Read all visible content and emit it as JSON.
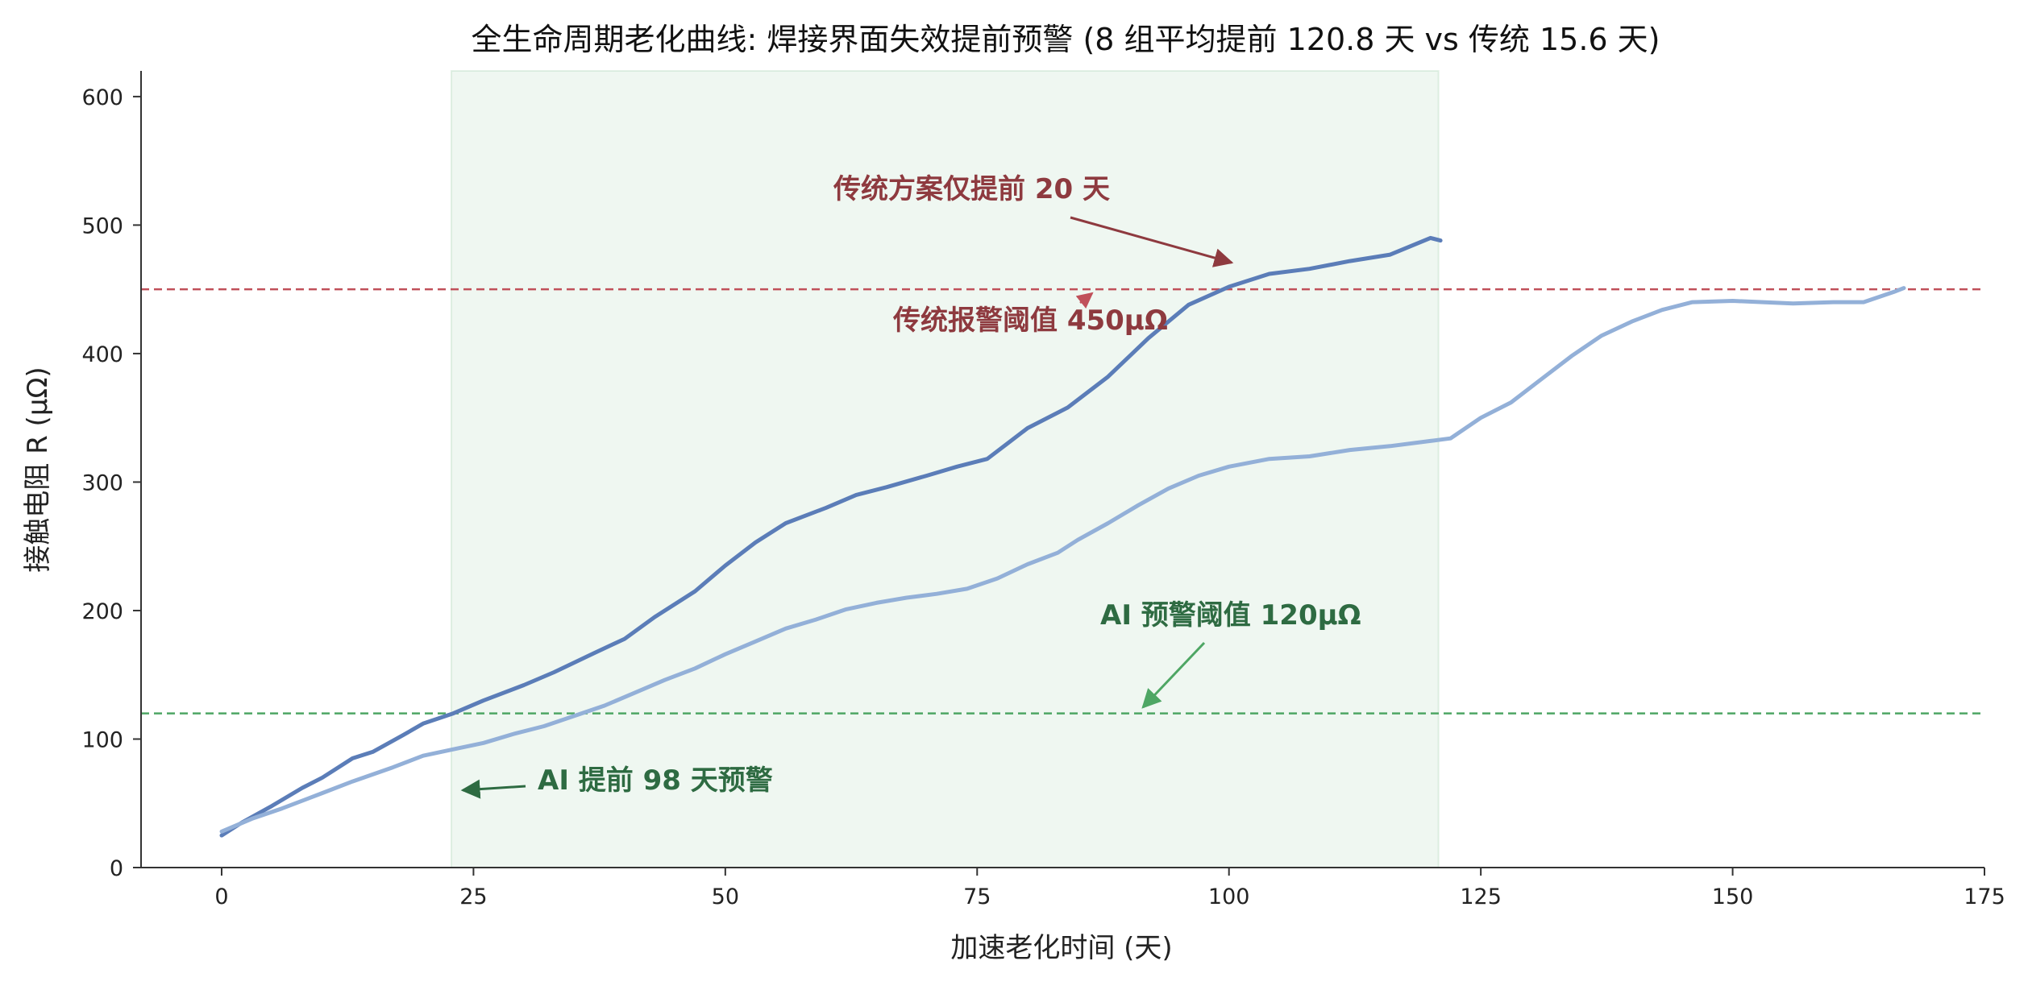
{
  "chart_data": {
    "type": "line",
    "title": "全生命周期老化曲线: 焊接界面失效提前预警 (8 组平均提前 120.8 天 vs 传统 15.6 天)",
    "xlabel": "加速老化时间 (天)",
    "ylabel": "接触电阻 R (μΩ)",
    "xlim": [
      -8,
      175
    ],
    "ylim": [
      0,
      620
    ],
    "xticks": [
      0,
      25,
      50,
      75,
      100,
      125,
      150,
      175
    ],
    "yticks": [
      0,
      100,
      200,
      300,
      400,
      500,
      600
    ],
    "grid": false,
    "series": [
      {
        "color": "#5b7db8",
        "points": [
          [
            0,
            25
          ],
          [
            2,
            35
          ],
          [
            5,
            48
          ],
          [
            8,
            62
          ],
          [
            10,
            70
          ],
          [
            13,
            85
          ],
          [
            15,
            90
          ],
          [
            18,
            103
          ],
          [
            20,
            112
          ],
          [
            23,
            120
          ],
          [
            26,
            130
          ],
          [
            30,
            142
          ],
          [
            33,
            152
          ],
          [
            37,
            167
          ],
          [
            40,
            178
          ],
          [
            43,
            195
          ],
          [
            47,
            215
          ],
          [
            50,
            235
          ],
          [
            53,
            253
          ],
          [
            56,
            268
          ],
          [
            60,
            280
          ],
          [
            63,
            290
          ],
          [
            66,
            296
          ],
          [
            70,
            305
          ],
          [
            73,
            312
          ],
          [
            76,
            318
          ],
          [
            78,
            330
          ],
          [
            80,
            342
          ],
          [
            84,
            358
          ],
          [
            88,
            382
          ],
          [
            92,
            412
          ],
          [
            96,
            438
          ],
          [
            100,
            452
          ],
          [
            104,
            462
          ],
          [
            108,
            466
          ],
          [
            112,
            472
          ],
          [
            116,
            477
          ],
          [
            120,
            490
          ],
          [
            121,
            488
          ]
        ]
      },
      {
        "color": "#93b0d8",
        "points": [
          [
            0,
            28
          ],
          [
            3,
            38
          ],
          [
            6,
            46
          ],
          [
            10,
            58
          ],
          [
            13,
            67
          ],
          [
            17,
            78
          ],
          [
            20,
            87
          ],
          [
            23,
            92
          ],
          [
            26,
            97
          ],
          [
            29,
            104
          ],
          [
            32,
            110
          ],
          [
            35,
            118
          ],
          [
            38,
            126
          ],
          [
            41,
            136
          ],
          [
            44,
            146
          ],
          [
            47,
            155
          ],
          [
            50,
            166
          ],
          [
            53,
            176
          ],
          [
            56,
            186
          ],
          [
            59,
            193
          ],
          [
            62,
            201
          ],
          [
            65,
            206
          ],
          [
            68,
            210
          ],
          [
            71,
            213
          ],
          [
            74,
            217
          ],
          [
            77,
            225
          ],
          [
            80,
            236
          ],
          [
            83,
            245
          ],
          [
            85,
            255
          ],
          [
            88,
            268
          ],
          [
            91,
            282
          ],
          [
            94,
            295
          ],
          [
            97,
            305
          ],
          [
            100,
            312
          ],
          [
            104,
            318
          ],
          [
            108,
            320
          ],
          [
            112,
            325
          ],
          [
            116,
            328
          ],
          [
            120,
            332
          ],
          [
            122,
            334
          ],
          [
            125,
            350
          ],
          [
            128,
            362
          ],
          [
            131,
            380
          ],
          [
            134,
            398
          ],
          [
            137,
            414
          ],
          [
            140,
            425
          ],
          [
            143,
            434
          ],
          [
            146,
            440
          ],
          [
            150,
            441
          ],
          [
            153,
            440
          ],
          [
            156,
            439
          ],
          [
            160,
            440
          ],
          [
            163,
            440
          ],
          [
            166,
            448
          ],
          [
            167,
            451
          ]
        ]
      }
    ],
    "thresholds": [
      {
        "y": 450,
        "color": "#c0505a"
      },
      {
        "y": 120,
        "color": "#4ea664"
      }
    ],
    "shaded_region": {
      "x": [
        22.8,
        120.8
      ],
      "color": "#4ea664"
    },
    "annotations": [
      {
        "text": "传统方案仅提前 20 天",
        "color": "#8e3a3f"
      },
      {
        "text": "传统报警阈值 450μΩ",
        "color": "#8e3a3f"
      },
      {
        "text": "AI 预警阈值 120μΩ",
        "color": "#2e6b42"
      },
      {
        "text": "AI 提前 98 天预警",
        "color": "#2e6b42"
      }
    ]
  }
}
